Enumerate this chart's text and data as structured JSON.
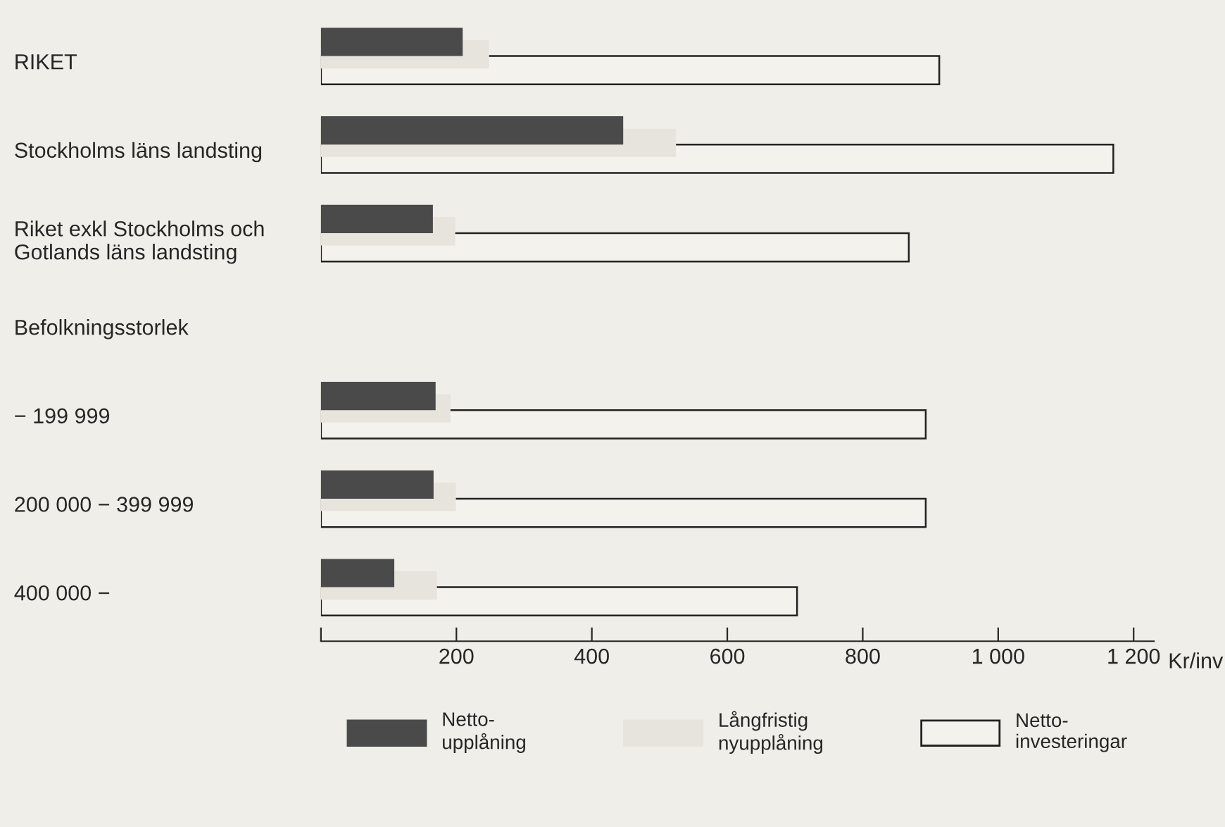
{
  "chart_data": {
    "type": "bar",
    "orientation": "horizontal",
    "xlabel": "Kr/inv",
    "categories": [
      "RIKET",
      "Stockholms läns landsting",
      "Riket exkl Stockholms och\nGotlands läns landsting",
      "Befolkningsstorlek",
      "− 199 999",
      "200 000 − 399 999",
      "400 000 −"
    ],
    "series": [
      {
        "name": "Netto-\nupplåning",
        "color": "#4a4a4a",
        "values": [
          208,
          445,
          164,
          null,
          168,
          165,
          107
        ]
      },
      {
        "name": "Långfristig\nnyupplåning",
        "color": "#e6e4dc",
        "values": [
          247,
          523,
          197,
          null,
          190,
          198,
          170
        ]
      },
      {
        "name": "Netto-\ninvesteringar",
        "color": "#f3f2ec",
        "values": [
          913,
          1170,
          868,
          null,
          893,
          893,
          703
        ]
      }
    ],
    "xlim": [
      0,
      1230
    ],
    "xticks": [
      {
        "value": 0,
        "label": null
      },
      200,
      400,
      600,
      800,
      {
        "value": 1000,
        "label": "1 000"
      },
      {
        "value": 1200,
        "label": "1 200"
      }
    ],
    "grid": false,
    "legend": "bottom"
  }
}
